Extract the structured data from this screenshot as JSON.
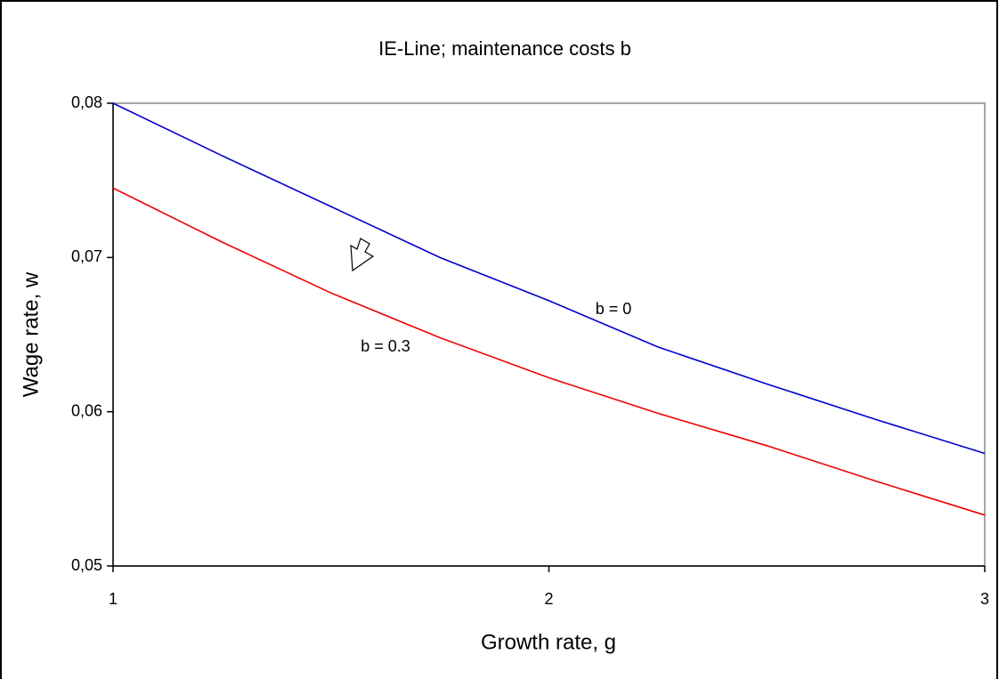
{
  "chart_data": {
    "type": "line",
    "title": "IE-Line; maintenance costs b",
    "x_label": "Growth rate, g",
    "y_label": "Wage rate, w",
    "x": [
      1,
      1.25,
      1.5,
      1.75,
      2,
      2.25,
      2.5,
      2.75,
      3
    ],
    "series": [
      {
        "name": "b = 0",
        "color": "#0000cc",
        "values": [
          0.08,
          0.0766,
          0.0733,
          0.07,
          0.0672,
          0.0642,
          0.0618,
          0.0595,
          0.0573
        ]
      },
      {
        "name": "b = 0.3",
        "color": "#ee0000",
        "values": [
          0.0745,
          0.071,
          0.0677,
          0.0648,
          0.0622,
          0.0599,
          0.0578,
          0.0555,
          0.0533
        ]
      }
    ],
    "xlim": [
      1,
      3
    ],
    "xticks": [
      1,
      2,
      3
    ],
    "ylim": [
      0.05,
      0.08
    ],
    "yticks": [
      {
        "value": 0.05,
        "label": "0,05"
      },
      {
        "value": 0.06,
        "label": "0,06"
      },
      {
        "value": 0.07,
        "label": "0,07"
      },
      {
        "value": 0.08,
        "label": "0,08"
      }
    ]
  }
}
